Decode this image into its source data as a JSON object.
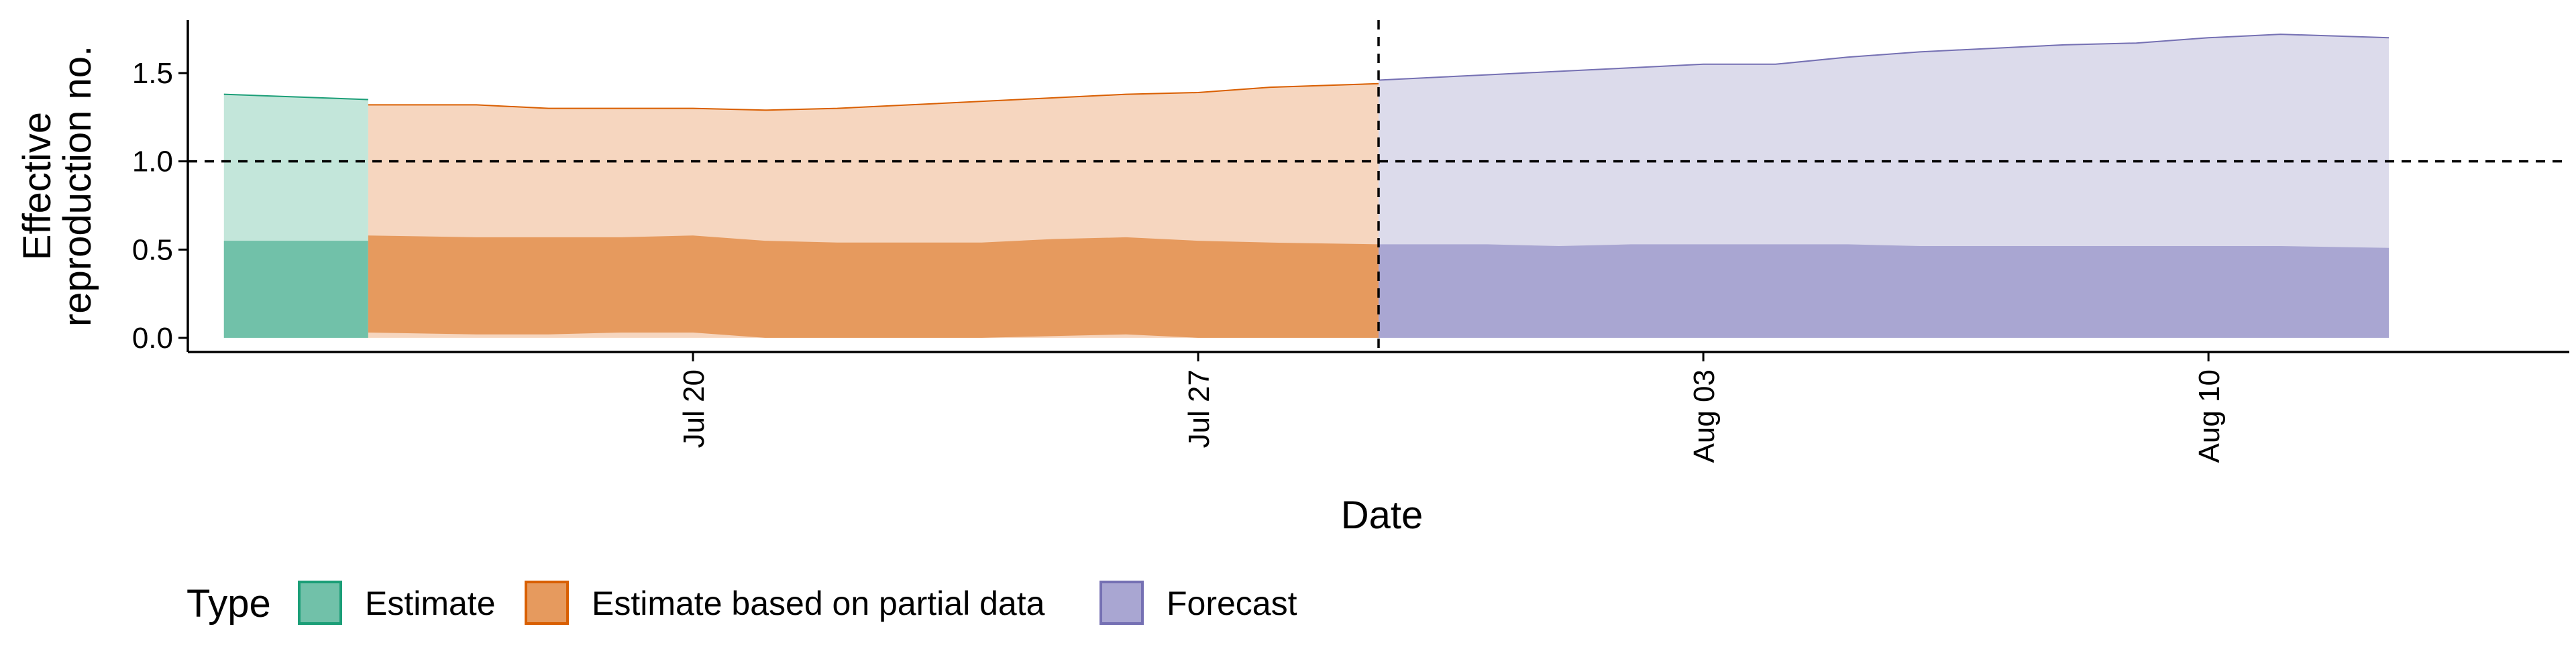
{
  "chart_data": {
    "type": "area",
    "xlabel": "Date",
    "ylabel_lines": [
      "Effective",
      "reproduction no."
    ],
    "ylim": [
      -0.08,
      1.8
    ],
    "xlim": [
      "2020-07-13",
      "2020-08-15"
    ],
    "y_ticks": [
      {
        "value": 0.0,
        "label": "0.0"
      },
      {
        "value": 0.5,
        "label": "0.5"
      },
      {
        "value": 1.0,
        "label": "1.0"
      },
      {
        "value": 1.5,
        "label": "1.5"
      }
    ],
    "x_ticks": [
      {
        "date": "2020-07-20",
        "label": "Jul 20"
      },
      {
        "date": "2020-07-27",
        "label": "Jul 27"
      },
      {
        "date": "2020-08-03",
        "label": "Aug 03"
      },
      {
        "date": "2020-08-10",
        "label": "Aug 10"
      }
    ],
    "reference_lines": {
      "horizontal_y": 1.0,
      "vertical_date": "2020-07-29"
    },
    "grid": false,
    "legend": {
      "title": "Type",
      "position": "bottom",
      "items": [
        {
          "label": "Estimate",
          "fill": "#71c1a9",
          "stroke": "#1b9e77"
        },
        {
          "label": "Estimate based on partial data",
          "fill": "#e69a5e",
          "stroke": "#d95f02"
        },
        {
          "label": "Forecast",
          "fill": "#a9a6d2",
          "stroke": "#7570b3"
        }
      ]
    },
    "series": [
      {
        "type": "Estimate",
        "color": "#1b9e77",
        "outer_fill": "#c3e6da",
        "inner_fill": "#71c1a9",
        "x": [
          "2020-07-14",
          "2020-07-15"
        ],
        "outer_lower": [
          0.0,
          0.0
        ],
        "outer_upper": [
          1.38,
          1.35
        ],
        "inner_lower": [
          0.0,
          0.0
        ],
        "inner_upper": [
          0.55,
          0.55
        ]
      },
      {
        "type": "Estimate based on partial data",
        "color": "#d95f02",
        "outer_fill": "#f6d6bf",
        "inner_fill": "#e69a5e",
        "x": [
          "2020-07-16",
          "2020-07-17",
          "2020-07-18",
          "2020-07-19",
          "2020-07-20",
          "2020-07-21",
          "2020-07-22",
          "2020-07-23",
          "2020-07-24",
          "2020-07-25",
          "2020-07-26",
          "2020-07-27",
          "2020-07-28",
          "2020-07-29"
        ],
        "outer_lower": [
          0.0,
          0.0,
          0.0,
          0.0,
          0.0,
          0.0,
          0.0,
          0.0,
          0.0,
          0.0,
          0.0,
          0.0,
          0.0,
          0.0
        ],
        "outer_upper": [
          1.32,
          1.32,
          1.3,
          1.3,
          1.3,
          1.29,
          1.3,
          1.32,
          1.34,
          1.36,
          1.38,
          1.39,
          1.42,
          1.44
        ],
        "inner_lower": [
          0.03,
          0.02,
          0.02,
          0.03,
          0.03,
          0.0,
          0.0,
          0.0,
          0.0,
          0.01,
          0.02,
          0.0,
          0.0,
          0.0
        ],
        "inner_upper": [
          0.58,
          0.57,
          0.57,
          0.57,
          0.58,
          0.55,
          0.54,
          0.54,
          0.54,
          0.56,
          0.57,
          0.55,
          0.54,
          0.53
        ]
      },
      {
        "type": "Forecast",
        "color": "#7570b3",
        "outer_fill": "#dcdbeb",
        "inner_fill": "#a9a6d2",
        "x": [
          "2020-07-30",
          "2020-07-31",
          "2020-08-01",
          "2020-08-02",
          "2020-08-03",
          "2020-08-04",
          "2020-08-05",
          "2020-08-06",
          "2020-08-07",
          "2020-08-08",
          "2020-08-09",
          "2020-08-10",
          "2020-08-11",
          "2020-08-12"
        ],
        "outer_lower": [
          0.0,
          0.0,
          0.0,
          0.0,
          0.0,
          0.0,
          0.0,
          0.0,
          0.0,
          0.0,
          0.0,
          0.0,
          0.0,
          0.0
        ],
        "outer_upper": [
          1.46,
          1.49,
          1.51,
          1.53,
          1.55,
          1.55,
          1.59,
          1.62,
          1.64,
          1.66,
          1.67,
          1.7,
          1.72,
          1.7
        ],
        "inner_lower": [
          0.0,
          0.0,
          0.0,
          0.0,
          0.0,
          0.0,
          0.0,
          0.0,
          0.0,
          0.0,
          0.0,
          0.0,
          0.0,
          0.0
        ],
        "inner_upper": [
          0.53,
          0.53,
          0.52,
          0.53,
          0.53,
          0.53,
          0.53,
          0.52,
          0.52,
          0.52,
          0.52,
          0.52,
          0.52,
          0.51
        ]
      }
    ]
  }
}
